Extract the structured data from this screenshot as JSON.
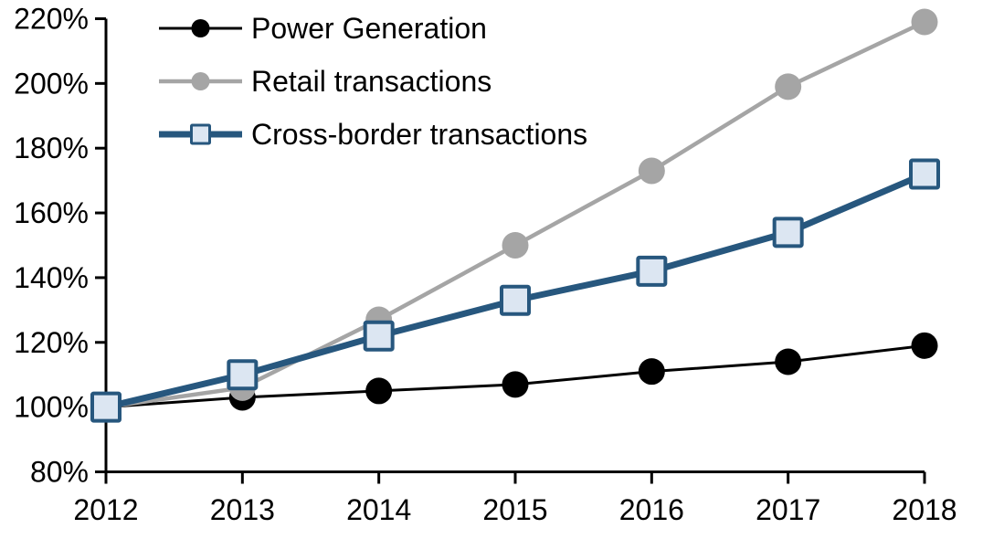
{
  "chart_data": {
    "type": "line",
    "title": "",
    "xlabel": "",
    "ylabel": "",
    "x": [
      2012,
      2013,
      2014,
      2015,
      2016,
      2017,
      2018
    ],
    "xtick_labels": [
      "2012",
      "2013",
      "2014",
      "2015",
      "2016",
      "2017",
      "2018"
    ],
    "ytick_labels": [
      "80%",
      "100%",
      "120%",
      "140%",
      "160%",
      "180%",
      "200%",
      "220%"
    ],
    "ylim": [
      80,
      220
    ],
    "ytick_step": 20,
    "grid": false,
    "legend_position": "top-left-inside",
    "axis_color": "#000000",
    "series": [
      {
        "name": "Power Generation",
        "color": "#000000",
        "marker": "circle",
        "marker_fill": "#000000",
        "line_width": 3,
        "values": [
          100,
          103,
          105,
          107,
          111,
          114,
          119
        ]
      },
      {
        "name": "Retail transactions",
        "color": "#A5A5A5",
        "marker": "circle",
        "marker_fill": "#A5A5A5",
        "line_width": 4.5,
        "values": [
          100,
          106,
          127,
          150,
          173,
          199,
          219
        ]
      },
      {
        "name": "Cross-border transactions",
        "color": "#27577E",
        "marker": "square",
        "marker_fill": "#DCE6F2",
        "line_width": 7,
        "values": [
          100,
          110,
          122,
          133,
          142,
          154,
          172
        ]
      }
    ]
  }
}
